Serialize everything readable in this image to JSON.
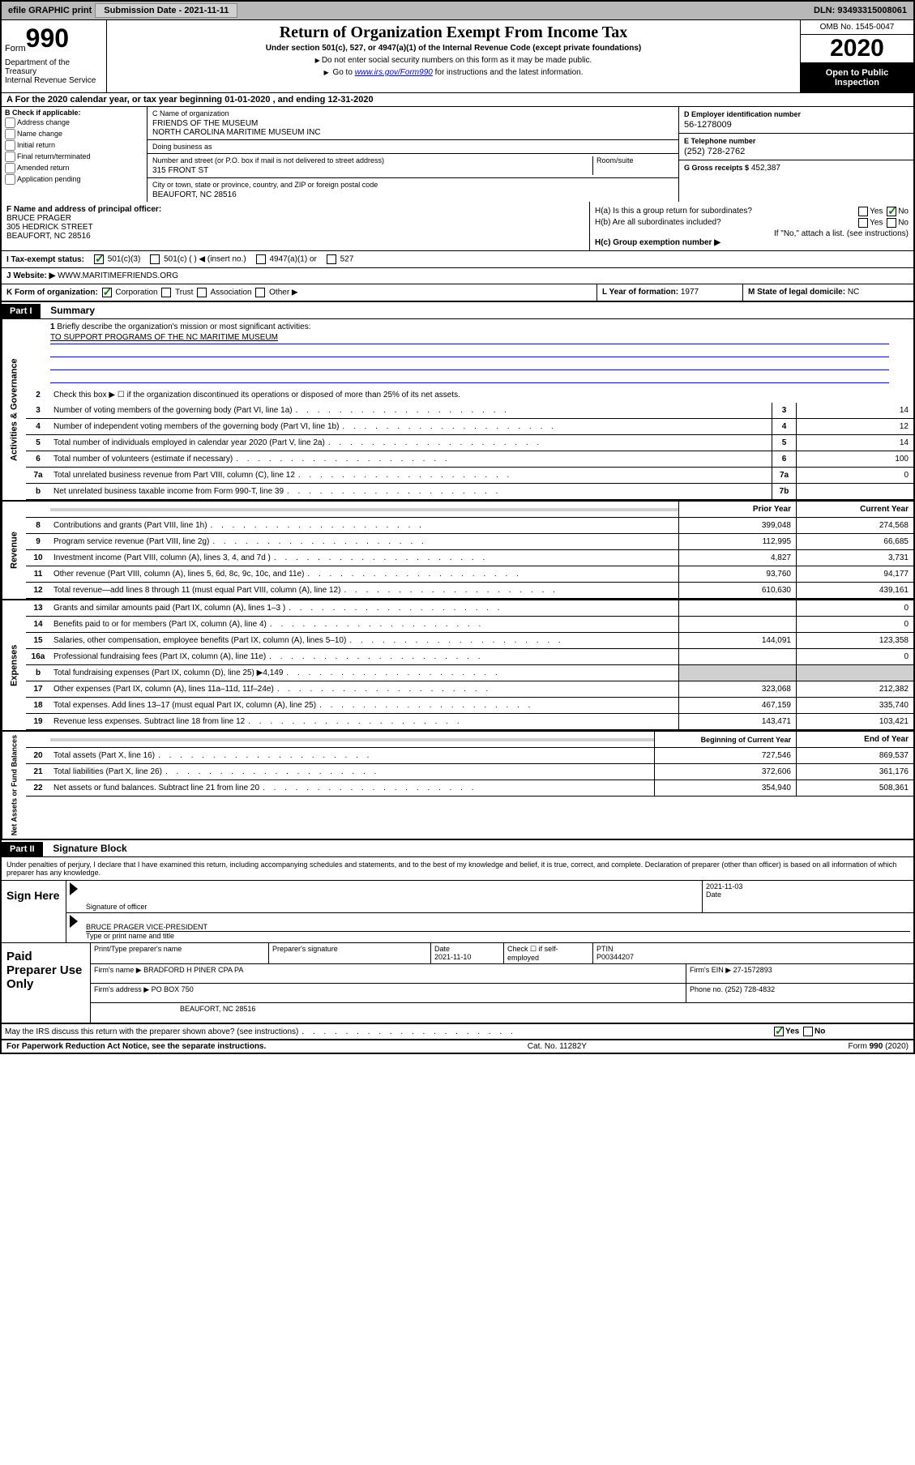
{
  "topbar": {
    "efile": "efile GRAPHIC print",
    "submission_label": "Submission Date - 2021-11-11",
    "dln_label": "DLN: 93493315008061"
  },
  "header": {
    "form_label": "Form",
    "form_number": "990",
    "dept": "Department of the Treasury\nInternal Revenue Service",
    "title": "Return of Organization Exempt From Income Tax",
    "subtitle": "Under section 501(c), 527, or 4947(a)(1) of the Internal Revenue Code (except private foundations)",
    "note1": "Do not enter social security numbers on this form as it may be made public.",
    "note2_pre": "Go to ",
    "note2_link": "www.irs.gov/Form990",
    "note2_post": " for instructions and the latest information.",
    "omb": "OMB No. 1545-0047",
    "year": "2020",
    "open_public": "Open to Public Inspection"
  },
  "tax_year": "For the 2020 calendar year, or tax year beginning 01-01-2020    , and ending 12-31-2020",
  "section_b": {
    "label": "B Check if applicable:",
    "items": [
      "Address change",
      "Name change",
      "Initial return",
      "Final return/terminated",
      "Amended return",
      "Application pending"
    ]
  },
  "section_c": {
    "name_label": "C Name of organization",
    "name": "FRIENDS OF THE MUSEUM\nNORTH CAROLINA MARITIME MUSEUM INC",
    "dba_label": "Doing business as",
    "dba": "",
    "addr_label": "Number and street (or P.O. box if mail is not delivered to street address)",
    "room_label": "Room/suite",
    "addr": "315 FRONT ST",
    "city_label": "City or town, state or province, country, and ZIP or foreign postal code",
    "city": "BEAUFORT, NC  28516"
  },
  "section_d": {
    "ein_label": "D Employer identification number",
    "ein": "56-1278009",
    "phone_label": "E Telephone number",
    "phone": "(252) 728-2762",
    "gross_label": "G Gross receipts $",
    "gross": "452,387"
  },
  "section_f": {
    "label": "F  Name and address of principal officer:",
    "name": "BRUCE PRAGER",
    "addr1": "305 HEDRICK STREET",
    "addr2": "BEAUFORT, NC  28516"
  },
  "section_h": {
    "ha_label": "H(a)  Is this a group return for subordinates?",
    "hb_label": "H(b)  Are all subordinates included?",
    "hb_note": "If \"No,\" attach a list. (see instructions)",
    "hc_label": "H(c)  Group exemption number ▶"
  },
  "section_i": {
    "label": "I    Tax-exempt status:",
    "opt1": "501(c)(3)",
    "opt2": "501(c) (  ) ◀ (insert no.)",
    "opt3": "4947(a)(1) or",
    "opt4": "527"
  },
  "section_j": {
    "label": "J    Website: ▶",
    "value": "WWW.MARITIMEFRIENDS.ORG"
  },
  "section_k": {
    "label": "K Form of organization:",
    "opts": [
      "Corporation",
      "Trust",
      "Association",
      "Other ▶"
    ]
  },
  "section_l": {
    "label": "L Year of formation:",
    "value": "1977"
  },
  "section_m": {
    "label": "M State of legal domicile:",
    "value": "NC"
  },
  "part1": {
    "header": "Part I",
    "title": "Summary",
    "line1_label": "Briefly describe the organization's mission or most significant activities:",
    "mission": "TO SUPPORT PROGRAMS OF THE NC MARITIME MUSEUM",
    "line2": "Check this box ▶ ☐  if the organization discontinued its operations or disposed of more than 25% of its net assets.",
    "governance": [
      {
        "n": "3",
        "t": "Number of voting members of the governing body (Part VI, line 1a)",
        "b": "3",
        "v": "14"
      },
      {
        "n": "4",
        "t": "Number of independent voting members of the governing body (Part VI, line 1b)",
        "b": "4",
        "v": "12"
      },
      {
        "n": "5",
        "t": "Total number of individuals employed in calendar year 2020 (Part V, line 2a)",
        "b": "5",
        "v": "14"
      },
      {
        "n": "6",
        "t": "Total number of volunteers (estimate if necessary)",
        "b": "6",
        "v": "100"
      },
      {
        "n": "7a",
        "t": "Total unrelated business revenue from Part VIII, column (C), line 12",
        "b": "7a",
        "v": "0"
      },
      {
        "n": "b",
        "t": "Net unrelated business taxable income from Form 990-T, line 39",
        "b": "7b",
        "v": ""
      }
    ],
    "col_prior": "Prior Year",
    "col_current": "Current Year",
    "revenue": [
      {
        "n": "8",
        "t": "Contributions and grants (Part VIII, line 1h)",
        "p": "399,048",
        "c": "274,568"
      },
      {
        "n": "9",
        "t": "Program service revenue (Part VIII, line 2g)",
        "p": "112,995",
        "c": "66,685"
      },
      {
        "n": "10",
        "t": "Investment income (Part VIII, column (A), lines 3, 4, and 7d )",
        "p": "4,827",
        "c": "3,731"
      },
      {
        "n": "11",
        "t": "Other revenue (Part VIII, column (A), lines 5, 6d, 8c, 9c, 10c, and 11e)",
        "p": "93,760",
        "c": "94,177"
      },
      {
        "n": "12",
        "t": "Total revenue—add lines 8 through 11 (must equal Part VIII, column (A), line 12)",
        "p": "610,630",
        "c": "439,161"
      }
    ],
    "expenses": [
      {
        "n": "13",
        "t": "Grants and similar amounts paid (Part IX, column (A), lines 1–3 )",
        "p": "",
        "c": "0"
      },
      {
        "n": "14",
        "t": "Benefits paid to or for members (Part IX, column (A), line 4)",
        "p": "",
        "c": "0"
      },
      {
        "n": "15",
        "t": "Salaries, other compensation, employee benefits (Part IX, column (A), lines 5–10)",
        "p": "144,091",
        "c": "123,358"
      },
      {
        "n": "16a",
        "t": "Professional fundraising fees (Part IX, column (A), line 11e)",
        "p": "",
        "c": "0"
      },
      {
        "n": "b",
        "t": "Total fundraising expenses (Part IX, column (D), line 25) ▶4,149",
        "p": "SHADED",
        "c": "SHADED"
      },
      {
        "n": "17",
        "t": "Other expenses (Part IX, column (A), lines 11a–11d, 11f–24e)",
        "p": "323,068",
        "c": "212,382"
      },
      {
        "n": "18",
        "t": "Total expenses. Add lines 13–17 (must equal Part IX, column (A), line 25)",
        "p": "467,159",
        "c": "335,740"
      },
      {
        "n": "19",
        "t": "Revenue less expenses. Subtract line 18 from line 12",
        "p": "143,471",
        "c": "103,421"
      }
    ],
    "col_begin": "Beginning of Current Year",
    "col_end": "End of Year",
    "net": [
      {
        "n": "20",
        "t": "Total assets (Part X, line 16)",
        "p": "727,546",
        "c": "869,537"
      },
      {
        "n": "21",
        "t": "Total liabilities (Part X, line 26)",
        "p": "372,606",
        "c": "361,176"
      },
      {
        "n": "22",
        "t": "Net assets or fund balances. Subtract line 21 from line 20",
        "p": "354,940",
        "c": "508,361"
      }
    ]
  },
  "part2": {
    "header": "Part II",
    "title": "Signature Block",
    "perjury": "Under penalties of perjury, I declare that I have examined this return, including accompanying schedules and statements, and to the best of my knowledge and belief, it is true, correct, and complete. Declaration of preparer (other than officer) is based on all information of which preparer has any knowledge."
  },
  "sign": {
    "label": "Sign Here",
    "officer_sig": "Signature of officer",
    "date": "2021-11-03",
    "date_label": "Date",
    "officer_name": "BRUCE PRAGER  VICE-PRESIDENT",
    "name_label": "Type or print name and title"
  },
  "preparer": {
    "label": "Paid Preparer Use Only",
    "print_label": "Print/Type preparer's name",
    "sig_label": "Preparer's signature",
    "date_label": "Date",
    "date": "2021-11-10",
    "check_label": "Check ☐ if self-employed",
    "ptin_label": "PTIN",
    "ptin": "P00344207",
    "firm_name_label": "Firm's name    ▶",
    "firm_name": "BRADFORD H PINER CPA PA",
    "firm_ein_label": "Firm's EIN ▶",
    "firm_ein": "27-1572893",
    "firm_addr_label": "Firm's address ▶",
    "firm_addr1": "PO BOX 750",
    "firm_addr2": "BEAUFORT, NC  28516",
    "phone_label": "Phone no.",
    "phone": "(252) 728-4832"
  },
  "discuss": "May the IRS discuss this return with the preparer shown above? (see instructions)",
  "footer": {
    "left": "For Paperwork Reduction Act Notice, see the separate instructions.",
    "mid": "Cat. No. 11282Y",
    "right": "Form 990 (2020)"
  },
  "side_labels": {
    "gov": "Activities & Governance",
    "rev": "Revenue",
    "exp": "Expenses",
    "net": "Net Assets or Fund Balances"
  }
}
